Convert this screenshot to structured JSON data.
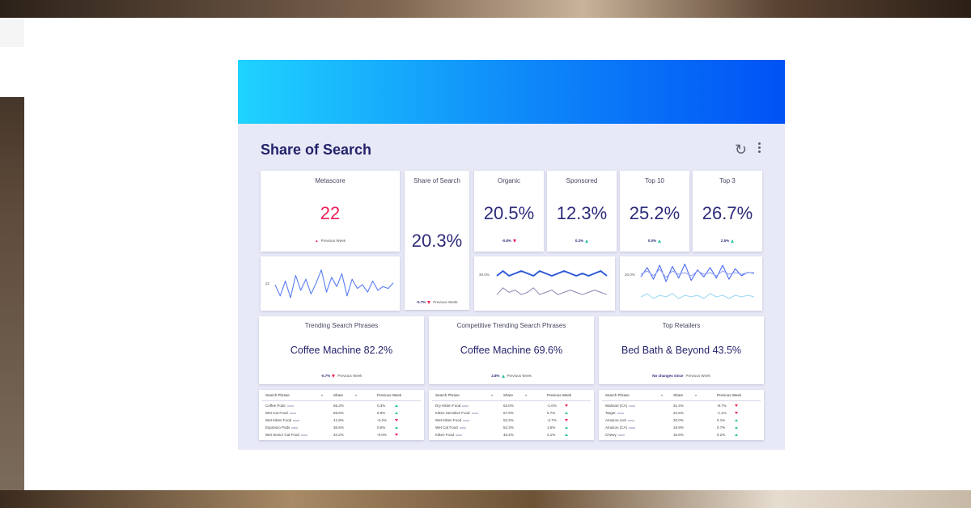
{
  "dashboard": {
    "title": "Share of Search",
    "accent_color": "#24236b",
    "positive_color": "#2fc4a4",
    "negative_color": "#ee1f59",
    "highlight_color": "#ee1f59"
  },
  "metascore": {
    "label": "Metascore",
    "value": "22",
    "delta_note": "Previous Week",
    "sparkline_label": "22",
    "sparkline": [
      22,
      16,
      24,
      15,
      27,
      19,
      25,
      17,
      23,
      30,
      18,
      26,
      21,
      28,
      16,
      25,
      20,
      22,
      18,
      24,
      19,
      21,
      20,
      23
    ]
  },
  "share_of_search": {
    "label": "Share of Search",
    "value": "20.3%",
    "delta": "-0.7%",
    "delta_note": "Previous Week"
  },
  "kpis": [
    {
      "label": "Organic",
      "value": "20.5%",
      "delta": "-0.8%",
      "direction": "down"
    },
    {
      "label": "Sponsored",
      "value": "12.3%",
      "delta": "0.2%",
      "direction": "up"
    },
    {
      "label": "Top 10",
      "value": "25.2%",
      "delta": "0.0%",
      "direction": "up"
    },
    {
      "label": "Top 3",
      "value": "26.7%",
      "delta": "2.5%",
      "direction": "up"
    }
  ],
  "organic_chart": {
    "y_label": "30.0%",
    "series_top": [
      20,
      22,
      20,
      21,
      22,
      21,
      20,
      22,
      21,
      20,
      21,
      22,
      21,
      20,
      21,
      20,
      21,
      22,
      20
    ],
    "series_bottom": [
      9,
      12,
      10,
      11,
      9,
      10,
      12,
      9,
      10,
      11,
      9,
      10,
      11,
      10,
      9,
      10,
      11,
      10,
      9
    ]
  },
  "top_chart": {
    "y_label": "20.0%",
    "series_a": [
      18,
      26,
      16,
      28,
      14,
      27,
      17,
      29,
      15,
      24,
      18,
      26,
      17,
      28,
      16,
      25,
      19,
      22,
      21
    ],
    "series_b": [
      20,
      22,
      19,
      23,
      18,
      22,
      20,
      21,
      19,
      22,
      20,
      21,
      19,
      22,
      20,
      21,
      20,
      21,
      21
    ],
    "series_c": [
      4,
      6,
      3,
      5,
      4,
      6,
      3,
      5,
      4,
      5,
      3,
      6,
      4,
      5,
      3,
      5,
      4,
      5,
      4
    ]
  },
  "panels": [
    {
      "label": "Trending Search Phrases",
      "value": "Coffee Machine 82.2%",
      "delta": "-0.7%",
      "delta_dir": "down",
      "delta_note": "Previous Week",
      "table": {
        "headers": [
          "Search Phrase",
          "Share",
          "Previous Week"
        ],
        "rows": [
          [
            "Coffee Pods",
            "65.3%",
            "0.3%",
            "up"
          ],
          [
            "Wet Cat Food",
            "59.6%",
            "6.8%",
            "up"
          ],
          [
            "Wet Kitten Food",
            "41.8%",
            "-0.4%",
            "down"
          ],
          [
            "Espresso Pods",
            "36.6%",
            "0.6%",
            "up"
          ],
          [
            "Wet Senior Cat Food",
            "34.2%",
            "-0.0%",
            "down"
          ]
        ]
      }
    },
    {
      "label": "Competitive Trending Search Phrases",
      "value": "Coffee Machine 69.6%",
      "delta": "2.8%",
      "delta_dir": "up",
      "delta_note": "Previous Week",
      "table": {
        "headers": [
          "Search Phrase",
          "Share",
          "Previous Week"
        ],
        "rows": [
          [
            "Dry Kitten Food",
            "63.0%",
            "-1.0%",
            "down"
          ],
          [
            "Kitten Sensitive Food",
            "57.9%",
            "5.7%",
            "up"
          ],
          [
            "Wet Kitten Food",
            "53.2%",
            "-2.7%",
            "down"
          ],
          [
            "Wet Cat Food",
            "52.3%",
            "1.5%",
            "up"
          ],
          [
            "Kitten Food",
            "46.2%",
            "4.1%",
            "up"
          ]
        ]
      }
    },
    {
      "label": "Top Retailers",
      "value": "Bed Bath & Beyond 43.5%",
      "delta": "No changes since",
      "delta_dir": "none",
      "delta_note": "Previous Week",
      "table": {
        "headers": [
          "Search Phrase",
          "Share",
          "Previous Week"
        ],
        "rows": [
          [
            "Walmart (CA)",
            "31.4%",
            "-8.7%",
            "down"
          ],
          [
            "Target",
            "22.6%",
            "-1.1%",
            "down"
          ],
          [
            "Amazon.com",
            "20.0%",
            "0.1%",
            "up"
          ],
          [
            "Amazon (CA)",
            "18.9%",
            "0.7%",
            "up"
          ],
          [
            "Chewy",
            "15.6%",
            "0.2%",
            "up"
          ]
        ]
      }
    }
  ]
}
